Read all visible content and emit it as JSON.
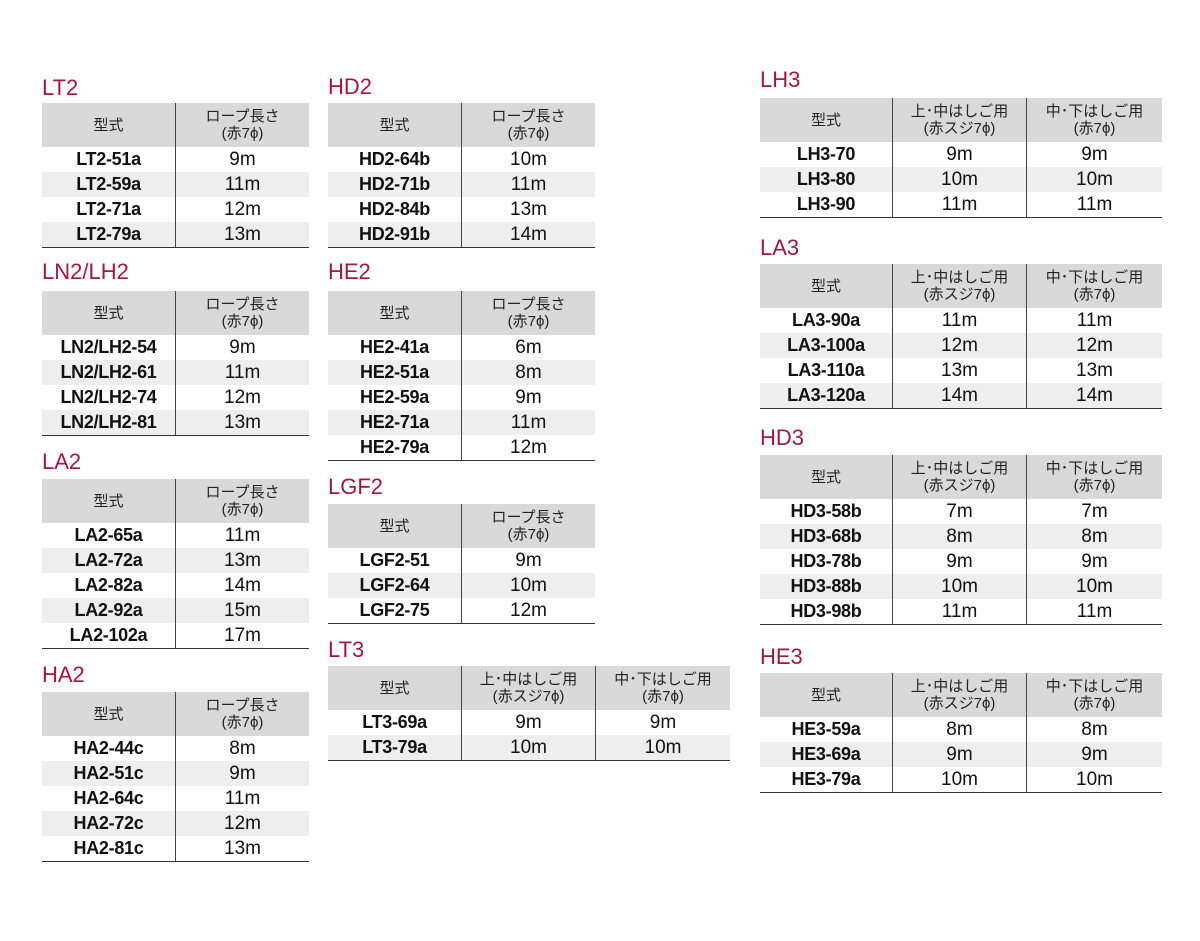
{
  "sections": [
    {
      "title": "LT2",
      "headers": [
        [
          "型式"
        ],
        [
          "ロープ長さ",
          "(赤7ϕ)"
        ]
      ],
      "rows": [
        [
          "LT2-51a",
          "9m"
        ],
        [
          "LT2-59a",
          "11m"
        ],
        [
          "LT2-71a",
          "12m"
        ],
        [
          "LT2-79a",
          "13m"
        ]
      ]
    },
    {
      "title": "LN2/LH2",
      "headers": [
        [
          "型式"
        ],
        [
          "ロープ長さ",
          "(赤7ϕ)"
        ]
      ],
      "rows": [
        [
          "LN2/LH2-54",
          "9m"
        ],
        [
          "LN2/LH2-61",
          "11m"
        ],
        [
          "LN2/LH2-74",
          "12m"
        ],
        [
          "LN2/LH2-81",
          "13m"
        ]
      ]
    },
    {
      "title": "LA2",
      "headers": [
        [
          "型式"
        ],
        [
          "ロープ長さ",
          "(赤7ϕ)"
        ]
      ],
      "rows": [
        [
          "LA2-65a",
          "11m"
        ],
        [
          "LA2-72a",
          "13m"
        ],
        [
          "LA2-82a",
          "14m"
        ],
        [
          "LA2-92a",
          "15m"
        ],
        [
          "LA2-102a",
          "17m"
        ]
      ]
    },
    {
      "title": "HA2",
      "headers": [
        [
          "型式"
        ],
        [
          "ロープ長さ",
          "(赤7ϕ)"
        ]
      ],
      "rows": [
        [
          "HA2-44c",
          "8m"
        ],
        [
          "HA2-51c",
          "9m"
        ],
        [
          "HA2-64c",
          "11m"
        ],
        [
          "HA2-72c",
          "12m"
        ],
        [
          "HA2-81c",
          "13m"
        ]
      ]
    },
    {
      "title": "HD2",
      "headers": [
        [
          "型式"
        ],
        [
          "ロープ長さ",
          "(赤7ϕ)"
        ]
      ],
      "rows": [
        [
          "HD2-64b",
          "10m"
        ],
        [
          "HD2-71b",
          "11m"
        ],
        [
          "HD2-84b",
          "13m"
        ],
        [
          "HD2-91b",
          "14m"
        ]
      ]
    },
    {
      "title": "HE2",
      "headers": [
        [
          "型式"
        ],
        [
          "ロープ長さ",
          "(赤7ϕ)"
        ]
      ],
      "rows": [
        [
          "HE2-41a",
          "6m"
        ],
        [
          "HE2-51a",
          "8m"
        ],
        [
          "HE2-59a",
          "9m"
        ],
        [
          "HE2-71a",
          "11m"
        ],
        [
          "HE2-79a",
          "12m"
        ]
      ]
    },
    {
      "title": "LGF2",
      "headers": [
        [
          "型式"
        ],
        [
          "ロープ長さ",
          "(赤7ϕ)"
        ]
      ],
      "rows": [
        [
          "LGF2-51",
          "9m"
        ],
        [
          "LGF2-64",
          "10m"
        ],
        [
          "LGF2-75",
          "12m"
        ]
      ]
    },
    {
      "title": "LT3",
      "headers": [
        [
          "型式"
        ],
        [
          "上･中はしご用",
          "(赤スジ7ϕ)"
        ],
        [
          "中･下はしご用",
          "(赤7ϕ)"
        ]
      ],
      "rows": [
        [
          "LT3-69a",
          "9m",
          "9m"
        ],
        [
          "LT3-79a",
          "10m",
          "10m"
        ]
      ]
    },
    {
      "title": "LH3",
      "headers": [
        [
          "型式"
        ],
        [
          "上･中はしご用",
          "(赤スジ7ϕ)"
        ],
        [
          "中･下はしご用",
          "(赤7ϕ)"
        ]
      ],
      "rows": [
        [
          "LH3-70",
          "9m",
          "9m"
        ],
        [
          "LH3-80",
          "10m",
          "10m"
        ],
        [
          "LH3-90",
          "11m",
          "11m"
        ]
      ]
    },
    {
      "title": "LA3",
      "headers": [
        [
          "型式"
        ],
        [
          "上･中はしご用",
          "(赤スジ7ϕ)"
        ],
        [
          "中･下はしご用",
          "(赤7ϕ)"
        ]
      ],
      "rows": [
        [
          "LA3-90a",
          "11m",
          "11m"
        ],
        [
          "LA3-100a",
          "12m",
          "12m"
        ],
        [
          "LA3-110a",
          "13m",
          "13m"
        ],
        [
          "LA3-120a",
          "14m",
          "14m"
        ]
      ]
    },
    {
      "title": "HD3",
      "headers": [
        [
          "型式"
        ],
        [
          "上･中はしご用",
          "(赤スジ7ϕ)"
        ],
        [
          "中･下はしご用",
          "(赤7ϕ)"
        ]
      ],
      "rows": [
        [
          "HD3-58b",
          "7m",
          "7m"
        ],
        [
          "HD3-68b",
          "8m",
          "8m"
        ],
        [
          "HD3-78b",
          "9m",
          "9m"
        ],
        [
          "HD3-88b",
          "10m",
          "10m"
        ],
        [
          "HD3-98b",
          "11m",
          "11m"
        ]
      ]
    },
    {
      "title": "HE3",
      "headers": [
        [
          "型式"
        ],
        [
          "上･中はしご用",
          "(赤スジ7ϕ)"
        ],
        [
          "中･下はしご用",
          "(赤7ϕ)"
        ]
      ],
      "rows": [
        [
          "HE3-59a",
          "8m",
          "8m"
        ],
        [
          "HE3-69a",
          "9m",
          "9m"
        ],
        [
          "HE3-79a",
          "10m",
          "10m"
        ]
      ]
    }
  ]
}
